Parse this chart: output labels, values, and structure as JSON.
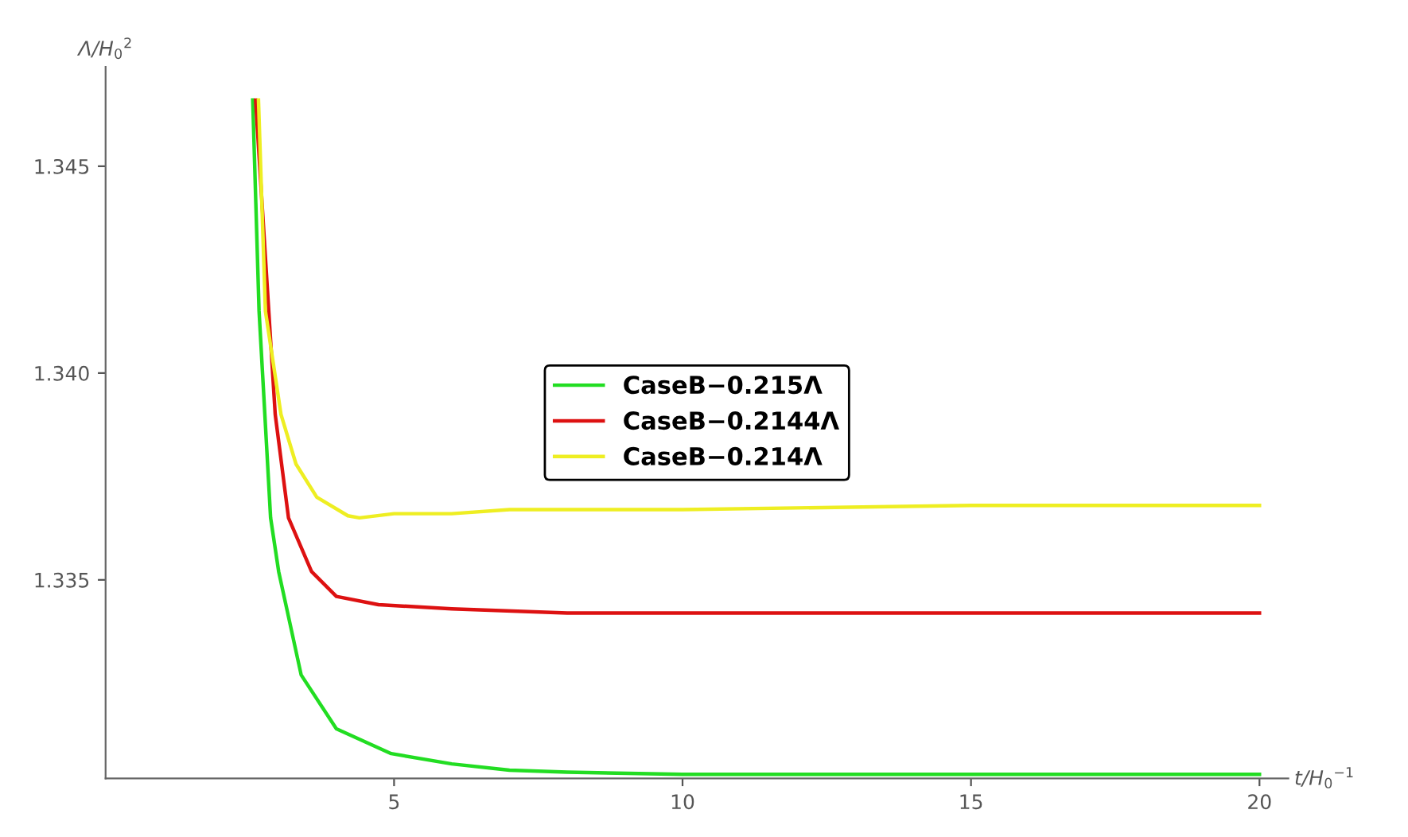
{
  "chart_data": {
    "type": "line",
    "xlabel": "t/H$_{0}$$^{−1}$",
    "ylabel": "Λ/H$_{0}$$^{2}$",
    "xlim": [
      0,
      20.5
    ],
    "ylim": [
      1.3302,
      1.3474
    ],
    "xticks": [
      5,
      10,
      15,
      20
    ],
    "yticks": [
      1.335,
      {
        "value": 1.34,
        "label": "1.340"
      },
      1.345
    ],
    "grid": false,
    "legend": "center",
    "line_style": "solid",
    "marker": "none",
    "series": [
      {
        "name": "CaseB−0.215Λ",
        "color": "#22dd22",
        "x": [
          2.55,
          2.66,
          2.86,
          3.0,
          3.39,
          4.0,
          4.95,
          6,
          7,
          8,
          10,
          15,
          20
        ],
        "values": [
          1.3466,
          1.3415,
          1.3365,
          1.3352,
          1.3327,
          1.3314,
          1.3308,
          1.33055,
          1.3304,
          1.33035,
          1.3303,
          1.3303,
          1.3303
        ]
      },
      {
        "name": "CaseB−0.2144Λ",
        "color": "#dd1111",
        "x": [
          2.6,
          2.94,
          3.17,
          3.57,
          4.0,
          4.73,
          6,
          8,
          10,
          15,
          20
        ],
        "values": [
          1.3466,
          1.339,
          1.3365,
          1.3352,
          1.3346,
          1.3344,
          1.3343,
          1.3342,
          1.3342,
          1.3342,
          1.3342
        ]
      },
      {
        "name": "CaseB−0.214Λ",
        "color": "#eeee22",
        "x": [
          2.65,
          2.77,
          3.04,
          3.3,
          3.66,
          4.2,
          4.4,
          5,
          6,
          7,
          10,
          15,
          20
        ],
        "values": [
          1.3466,
          1.3415,
          1.339,
          1.3378,
          1.337,
          1.33655,
          1.3365,
          1.3366,
          1.3366,
          1.3367,
          1.3367,
          1.3368,
          1.3368
        ]
      }
    ]
  }
}
